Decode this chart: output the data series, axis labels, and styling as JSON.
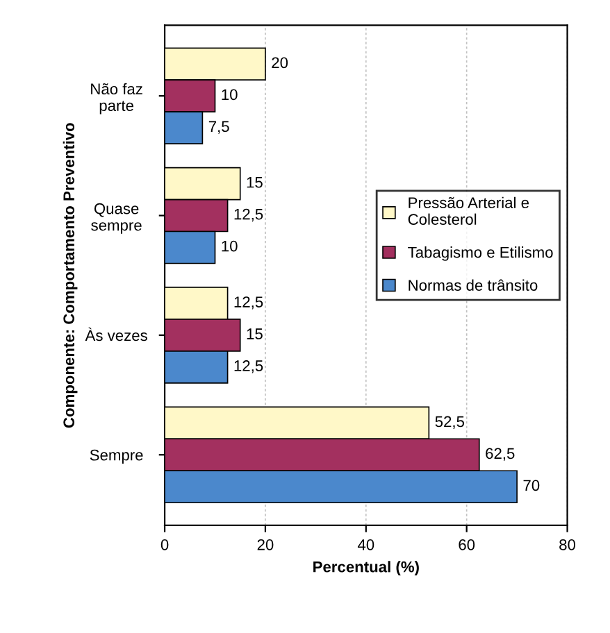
{
  "chart_data": {
    "type": "bar",
    "orientation": "horizontal",
    "xlabel": "Percentual (%)",
    "ylabel": "Componente: Comportamento Preventivo",
    "categories": [
      "Não faz\nparte",
      "Quase\nsempre",
      "Às vezes",
      "Sempre"
    ],
    "series": [
      {
        "name": "Pressão Arterial e\nColesterol",
        "color": "#fff8c8",
        "values": [
          20,
          15,
          12.5,
          52.5
        ],
        "value_labels": [
          "20",
          "15",
          "12,5",
          "52,5"
        ]
      },
      {
        "name": "Tabagismo e Etilismo",
        "color": "#a3305f",
        "values": [
          10,
          12.5,
          15,
          62.5
        ],
        "value_labels": [
          "10",
          "12,5",
          "15",
          "62,5"
        ]
      },
      {
        "name": "Normas de trânsito",
        "color": "#4b88cc",
        "values": [
          7.5,
          10,
          12.5,
          70
        ],
        "value_labels": [
          "7,5",
          "10",
          "12,5",
          "70"
        ]
      }
    ],
    "xlim": [
      0,
      80
    ],
    "xticks": [
      0,
      20,
      40,
      60,
      80
    ],
    "grid": "x",
    "legend": "right"
  }
}
